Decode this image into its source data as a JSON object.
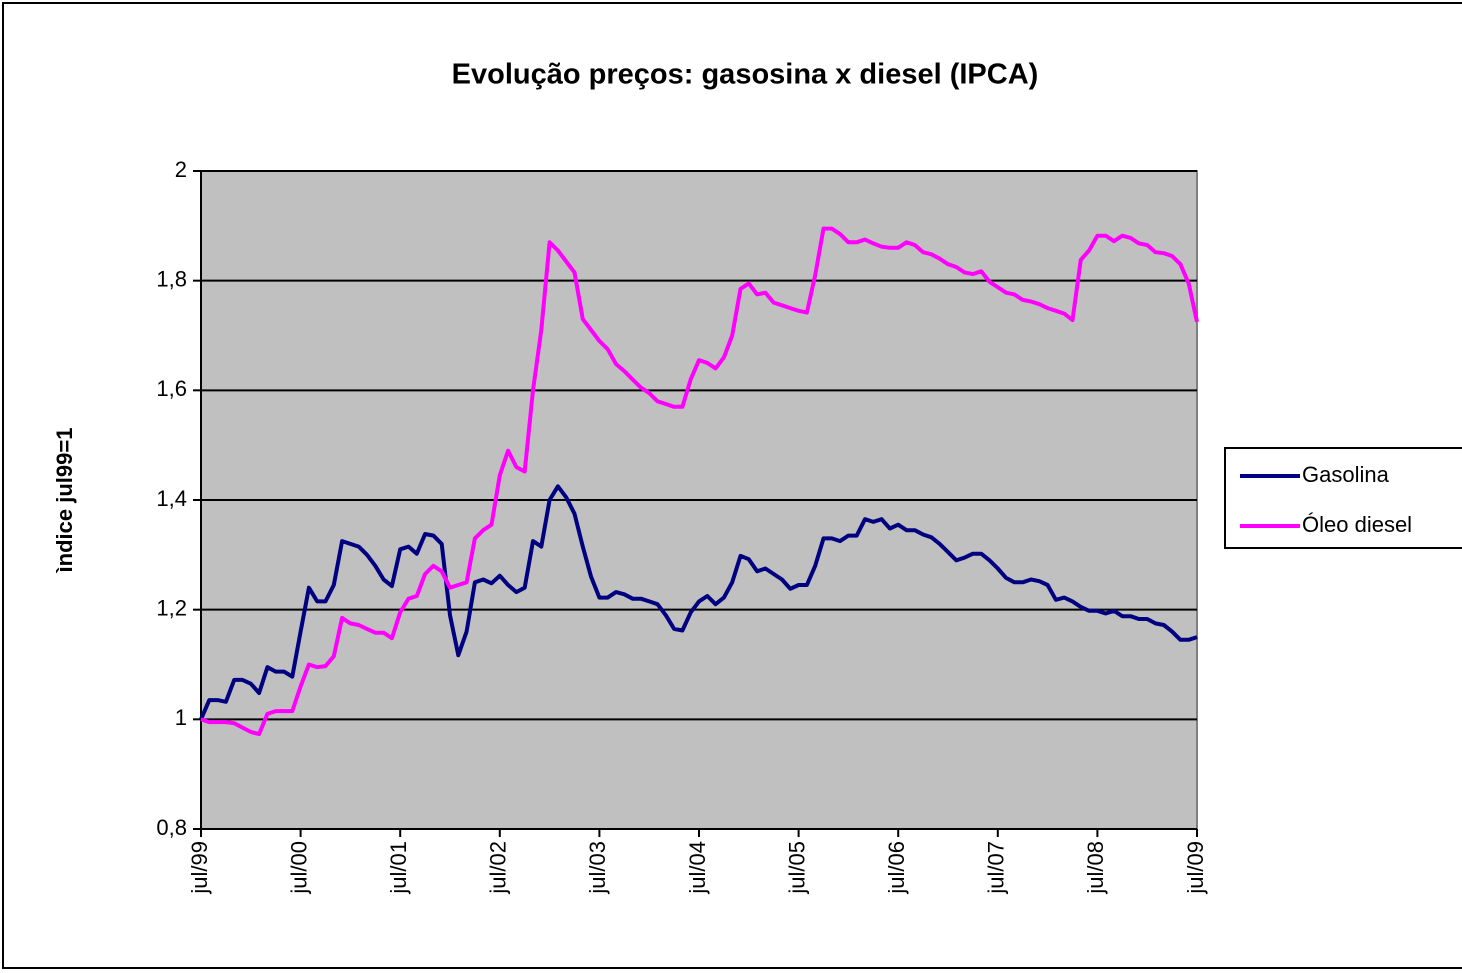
{
  "chart_data": {
    "type": "line",
    "title": "Evolução preços: gasosina x diesel (IPCA)",
    "y_label": "ìndice jul99=1",
    "categories": [
      "jul/99",
      null,
      null,
      null,
      null,
      null,
      null,
      null,
      null,
      null,
      null,
      null,
      "jul/00",
      null,
      null,
      null,
      null,
      null,
      null,
      null,
      null,
      null,
      null,
      null,
      "jul/01",
      null,
      null,
      null,
      null,
      null,
      null,
      null,
      null,
      null,
      null,
      null,
      "jul/02",
      null,
      null,
      null,
      null,
      null,
      null,
      null,
      null,
      null,
      null,
      null,
      "jul/03",
      null,
      null,
      null,
      null,
      null,
      null,
      null,
      null,
      null,
      null,
      null,
      "jul/04",
      null,
      null,
      null,
      null,
      null,
      null,
      null,
      null,
      null,
      null,
      null,
      "jul/05",
      null,
      null,
      null,
      null,
      null,
      null,
      null,
      null,
      null,
      null,
      null,
      "jul/06",
      null,
      null,
      null,
      null,
      null,
      null,
      null,
      null,
      null,
      null,
      null,
      "jul/07",
      null,
      null,
      null,
      null,
      null,
      null,
      null,
      null,
      null,
      null,
      null,
      "jul/08",
      null,
      null,
      null,
      null,
      null,
      null,
      null,
      null,
      null,
      null,
      null,
      "jul/09"
    ],
    "series": [
      {
        "name": "Gasolina",
        "color": "#000080",
        "values": [
          1.0,
          1.035,
          1.035,
          1.032,
          1.072,
          1.072,
          1.065,
          1.048,
          1.095,
          1.087,
          1.087,
          1.078,
          1.16,
          1.24,
          1.215,
          1.215,
          1.245,
          1.325,
          1.32,
          1.315,
          1.3,
          1.28,
          1.255,
          1.243,
          1.31,
          1.315,
          1.302,
          1.338,
          1.335,
          1.32,
          1.19,
          1.117,
          1.16,
          1.25,
          1.255,
          1.248,
          1.262,
          1.245,
          1.232,
          1.24,
          1.325,
          1.315,
          1.4,
          1.425,
          1.405,
          1.375,
          1.315,
          1.26,
          1.222,
          1.222,
          1.232,
          1.228,
          1.22,
          1.22,
          1.215,
          1.21,
          1.19,
          1.165,
          1.162,
          1.195,
          1.215,
          1.225,
          1.21,
          1.222,
          1.25,
          1.298,
          1.292,
          1.27,
          1.275,
          1.265,
          1.255,
          1.238,
          1.245,
          1.245,
          1.28,
          1.33,
          1.33,
          1.325,
          1.335,
          1.335,
          1.365,
          1.36,
          1.365,
          1.348,
          1.355,
          1.345,
          1.345,
          1.337,
          1.332,
          1.32,
          1.305,
          1.29,
          1.295,
          1.302,
          1.302,
          1.29,
          1.275,
          1.258,
          1.25,
          1.25,
          1.255,
          1.252,
          1.245,
          1.218,
          1.222,
          1.215,
          1.205,
          1.198,
          1.198,
          1.193,
          1.198,
          1.188,
          1.188,
          1.183,
          1.183,
          1.175,
          1.172,
          1.16,
          1.145,
          1.145,
          1.15
        ]
      },
      {
        "name": "Óleo diesel",
        "color": "#ff00ff",
        "values": [
          1.0,
          0.995,
          0.995,
          0.995,
          0.993,
          0.985,
          0.977,
          0.973,
          1.01,
          1.015,
          1.015,
          1.015,
          1.06,
          1.1,
          1.095,
          1.097,
          1.115,
          1.185,
          1.175,
          1.172,
          1.165,
          1.158,
          1.158,
          1.148,
          1.195,
          1.22,
          1.225,
          1.265,
          1.28,
          1.27,
          1.24,
          1.245,
          1.25,
          1.33,
          1.345,
          1.355,
          1.445,
          1.49,
          1.46,
          1.452,
          1.6,
          1.71,
          1.87,
          1.855,
          1.835,
          1.815,
          1.73,
          1.71,
          1.69,
          1.675,
          1.648,
          1.635,
          1.62,
          1.605,
          1.595,
          1.58,
          1.575,
          1.57,
          1.57,
          1.62,
          1.655,
          1.65,
          1.64,
          1.66,
          1.7,
          1.785,
          1.795,
          1.775,
          1.778,
          1.76,
          1.755,
          1.75,
          1.745,
          1.742,
          1.81,
          1.895,
          1.895,
          1.885,
          1.87,
          1.87,
          1.875,
          1.868,
          1.862,
          1.86,
          1.86,
          1.87,
          1.865,
          1.852,
          1.848,
          1.84,
          1.83,
          1.825,
          1.815,
          1.812,
          1.817,
          1.798,
          1.788,
          1.778,
          1.775,
          1.765,
          1.762,
          1.757,
          1.75,
          1.745,
          1.74,
          1.728,
          1.838,
          1.855,
          1.882,
          1.882,
          1.872,
          1.882,
          1.878,
          1.868,
          1.865,
          1.852,
          1.85,
          1.845,
          1.83,
          1.795,
          1.725
        ]
      }
    ],
    "ylim": [
      0.8,
      2
    ],
    "yticks": [
      {
        "value": 0.8,
        "label": "0,8"
      },
      1,
      {
        "value": 1.2,
        "label": "1,2"
      },
      {
        "value": 1.4,
        "label": "1,4"
      },
      {
        "value": 1.6,
        "label": "1,6"
      },
      {
        "value": 1.8,
        "label": "1,8"
      },
      2
    ],
    "grid": true,
    "legend": "right"
  }
}
